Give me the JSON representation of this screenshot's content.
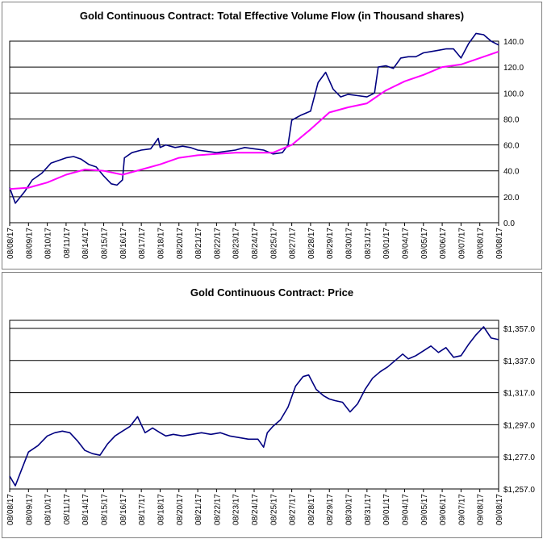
{
  "chart_data": [
    {
      "type": "line",
      "title": "Gold Continuous Contract: Total Effective Volume Flow (in Thousand shares)",
      "x_tick_labels": [
        "08/08/17",
        "08/09/17",
        "08/10/17",
        "08/11/17",
        "08/14/17",
        "08/15/17",
        "08/16/17",
        "08/17/17",
        "08/18/17",
        "08/20/17",
        "08/21/17",
        "08/22/17",
        "08/23/17",
        "08/24/17",
        "08/25/17",
        "08/27/17",
        "08/28/17",
        "08/29/17",
        "08/30/17",
        "08/31/17",
        "09/01/17",
        "09/04/17",
        "09/05/17",
        "09/06/17",
        "09/07/17",
        "09/08/17",
        "09/08/17"
      ],
      "y_ticks": [
        "0.0",
        "20.0",
        "40.0",
        "60.0",
        "80.0",
        "100.0",
        "120.0",
        "140.0"
      ],
      "ylim": [
        0,
        140
      ],
      "grid": "horizontal",
      "series": [
        {
          "color": "#000080",
          "x": [
            0,
            0.3,
            0.8,
            1.2,
            1.7,
            2.2,
            2.6,
            3.0,
            3.4,
            3.8,
            4.2,
            4.6,
            5.0,
            5.4,
            5.7,
            6.0,
            6.1,
            6.5,
            7.0,
            7.5,
            7.9,
            8.0,
            8.3,
            8.8,
            9.2,
            9.6,
            10.0,
            10.5,
            11.0,
            11.5,
            12.0,
            12.5,
            13.0,
            13.5,
            14.0,
            14.5,
            14.8,
            15.0,
            15.5,
            16.0,
            16.4,
            16.8,
            17.2,
            17.6,
            18.0,
            18.5,
            19.0,
            19.4,
            19.6,
            20.0,
            20.4,
            20.8,
            21.2,
            21.6,
            22.0,
            22.4,
            22.8,
            23.2,
            23.6,
            24.0,
            24.4,
            24.8,
            25.2,
            25.6,
            26.0
          ],
          "values": [
            27,
            15,
            24,
            33,
            38,
            46,
            48,
            50,
            51,
            49,
            45,
            43,
            36,
            30,
            29,
            33,
            50,
            54,
            56,
            57,
            65,
            58,
            60,
            58,
            59,
            58,
            56,
            55,
            54,
            55,
            56,
            58,
            57,
            56,
            53,
            54,
            60,
            79,
            83,
            86,
            108,
            116,
            103,
            97,
            99,
            98,
            97,
            100,
            120,
            121,
            119,
            127,
            128,
            128,
            131,
            132,
            133,
            134,
            134,
            127,
            138,
            146,
            145,
            140,
            137
          ]
        },
        {
          "color": "#ff00ff",
          "x": [
            0,
            1,
            2,
            3,
            4,
            5,
            6,
            7,
            8,
            9,
            10,
            11,
            12,
            13,
            14,
            15,
            16,
            17,
            18,
            19,
            20,
            21,
            22,
            23,
            24,
            25,
            26
          ],
          "values": [
            26,
            27,
            31,
            37,
            41,
            40,
            37,
            41,
            45,
            50,
            52,
            53,
            54,
            54,
            54,
            60,
            72,
            85,
            89,
            92,
            102,
            109,
            114,
            120,
            122,
            127,
            132
          ]
        }
      ]
    },
    {
      "type": "line",
      "title": "Gold Continuous Contract: Price",
      "x_tick_labels": [
        "08/08/17",
        "08/09/17",
        "08/10/17",
        "08/11/17",
        "08/14/17",
        "08/15/17",
        "08/16/17",
        "08/17/17",
        "08/18/17",
        "08/20/17",
        "08/21/17",
        "08/22/17",
        "08/23/17",
        "08/24/17",
        "08/25/17",
        "08/27/17",
        "08/28/17",
        "08/29/17",
        "08/30/17",
        "08/31/17",
        "09/01/17",
        "09/04/17",
        "09/05/17",
        "09/06/17",
        "09/07/17",
        "09/08/17",
        "09/08/17"
      ],
      "y_ticks": [
        "$1,257.0",
        "$1,277.0",
        "$1,297.0",
        "$1,317.0",
        "$1,337.0",
        "$1,357.0"
      ],
      "ylim": [
        1257,
        1362
      ],
      "grid": "horizontal",
      "series": [
        {
          "color": "#000080",
          "x": [
            0,
            0.3,
            0.7,
            1.0,
            1.5,
            2.0,
            2.4,
            2.8,
            3.2,
            3.6,
            4.0,
            4.4,
            4.8,
            5.2,
            5.6,
            6.0,
            6.4,
            6.8,
            7.2,
            7.6,
            8.0,
            8.3,
            8.7,
            9.2,
            9.7,
            10.2,
            10.7,
            11.2,
            11.7,
            12.2,
            12.7,
            13.2,
            13.5,
            13.7,
            14.0,
            14.4,
            14.8,
            15.2,
            15.6,
            15.9,
            16.3,
            16.7,
            17.0,
            17.3,
            17.7,
            18.1,
            18.5,
            18.9,
            19.3,
            19.7,
            20.1,
            20.5,
            20.9,
            21.2,
            21.6,
            22.0,
            22.4,
            22.8,
            23.2,
            23.6,
            24.0,
            24.4,
            24.8,
            25.2,
            25.6,
            26.0
          ],
          "values": [
            1265,
            1259,
            1271,
            1280,
            1284,
            1290,
            1292,
            1293,
            1292,
            1287,
            1281,
            1279,
            1278,
            1285,
            1290,
            1293,
            1296,
            1302,
            1292,
            1295,
            1292,
            1290,
            1291,
            1290,
            1291,
            1292,
            1291,
            1292,
            1290,
            1289,
            1288,
            1288,
            1283,
            1292,
            1296,
            1300,
            1308,
            1321,
            1327,
            1328,
            1319,
            1315,
            1313,
            1312,
            1311,
            1305,
            1310,
            1319,
            1326,
            1330,
            1333,
            1337,
            1341,
            1338,
            1340,
            1343,
            1346,
            1342,
            1345,
            1339,
            1340,
            1347,
            1353,
            1358,
            1351,
            1350
          ]
        }
      ]
    }
  ]
}
